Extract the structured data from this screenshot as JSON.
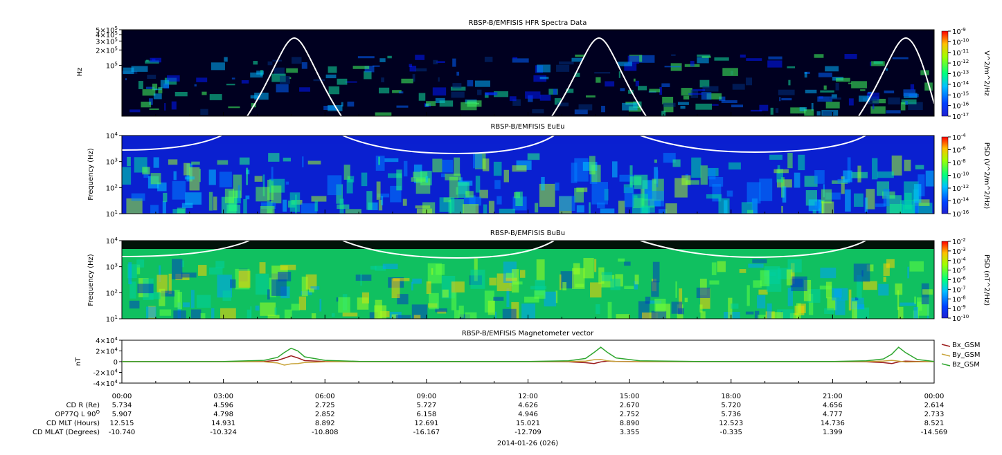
{
  "chart_data": [
    {
      "type": "heatmap",
      "title": "RBSP-B/EMFISIS  HFR Spectra Data",
      "ylabel": "Hz",
      "ylim": [
        10000,
        500000
      ],
      "ylog": true,
      "y_ticks": [
        {
          "label": "5×10",
          "exp": "5",
          "value": 500000
        },
        {
          "label": "4×10",
          "exp": "5",
          "value": 400000
        },
        {
          "label": "3×10",
          "exp": "5",
          "value": 300000
        },
        {
          "label": "2×10",
          "exp": "5",
          "value": 200000
        },
        {
          "label": "10",
          "exp": "5",
          "value": 100000
        }
      ],
      "colorbar": {
        "label": "V^2/m^2/Hz",
        "exponents": [
          "-9",
          "-10",
          "-11",
          "-12",
          "-13",
          "-14",
          "-15",
          "-16",
          "-17"
        ]
      }
    },
    {
      "type": "heatmap",
      "title": "RBSP-B/EMFISIS  EuEu",
      "ylabel": "Frequency (Hz)",
      "ylim": [
        10,
        10000
      ],
      "ylog": true,
      "y_ticks": [
        {
          "label": "10",
          "exp": "4",
          "value": 10000
        },
        {
          "label": "10",
          "exp": "3",
          "value": 1000
        },
        {
          "label": "10",
          "exp": "2",
          "value": 100
        },
        {
          "label": "10",
          "exp": "1",
          "value": 10
        }
      ],
      "colorbar": {
        "label": "PSD (V^2/m^2/Hz)",
        "exponents": [
          "-4",
          "-6",
          "-8",
          "-10",
          "-12",
          "-14",
          "-16"
        ]
      }
    },
    {
      "type": "heatmap",
      "title": "RBSP-B/EMFISIS  BuBu",
      "ylabel": "Frequency (Hz)",
      "ylim": [
        10,
        10000
      ],
      "ylog": true,
      "y_ticks": [
        {
          "label": "10",
          "exp": "4",
          "value": 10000
        },
        {
          "label": "10",
          "exp": "3",
          "value": 1000
        },
        {
          "label": "10",
          "exp": "2",
          "value": 100
        },
        {
          "label": "10",
          "exp": "1",
          "value": 10
        }
      ],
      "colorbar": {
        "label": "PSD (nT^2/Hz)",
        "exponents": [
          "-2",
          "-3",
          "-4",
          "-5",
          "-6",
          "-7",
          "-8",
          "-9",
          "-10"
        ]
      }
    },
    {
      "type": "line",
      "title": "RBSP-B/EMFISIS  Magnetometer vector",
      "ylabel": "nT",
      "ylim": [
        -40000,
        40000
      ],
      "y_ticks": [
        {
          "label": "4×10",
          "exp": "4",
          "value": 40000
        },
        {
          "label": "2×10",
          "exp": "4",
          "value": 20000
        },
        {
          "label": "0",
          "exp": "",
          "value": 0
        },
        {
          "label": "-2×10",
          "exp": "4",
          "value": -20000
        },
        {
          "label": "-4×10",
          "exp": "4",
          "value": -40000
        }
      ],
      "x": [
        0,
        3,
        4.2,
        4.6,
        4.8,
        5.0,
        5.2,
        5.4,
        6.0,
        7.0,
        12,
        13.2,
        13.7,
        13.95,
        14.15,
        14.35,
        14.6,
        15.3,
        17,
        21,
        22.0,
        22.5,
        22.75,
        22.95,
        23.15,
        23.5,
        24
      ],
      "series": [
        {
          "name": "Bx_GSM",
          "color": "#9b1c1c",
          "values": [
            0,
            0,
            400,
            2500,
            6500,
            11000,
            7000,
            2000,
            300,
            50,
            0,
            -300,
            -2000,
            -3500,
            -500,
            1200,
            400,
            50,
            0,
            0,
            -300,
            -1800,
            -3500,
            -500,
            900,
            300,
            0
          ]
        },
        {
          "name": "By_GSM",
          "color": "#c8a43a",
          "values": [
            0,
            0,
            -300,
            -2500,
            -6500,
            -4000,
            -3500,
            -1500,
            -200,
            0,
            0,
            200,
            900,
            3500,
            4000,
            1500,
            300,
            0,
            0,
            0,
            200,
            1200,
            2500,
            1000,
            -600,
            -200,
            0
          ]
        },
        {
          "name": "Bz_GSM",
          "color": "#2ea62e",
          "values": [
            0,
            300,
            2500,
            8000,
            17000,
            25000,
            20000,
            9000,
            2500,
            500,
            300,
            1500,
            6000,
            17000,
            27000,
            17000,
            7000,
            1500,
            300,
            300,
            1500,
            5000,
            14000,
            27000,
            17000,
            4000,
            300
          ]
        }
      ]
    }
  ],
  "x_axis": {
    "tick_labels": [
      "00:00",
      "03:00",
      "06:00",
      "09:00",
      "12:00",
      "15:00",
      "18:00",
      "21:00",
      "00:00"
    ],
    "rows": [
      {
        "label": "CD R (Re)",
        "values": [
          "5.734",
          "4.596",
          "2.725",
          "5.727",
          "4.626",
          "2.670",
          "5.720",
          "4.656",
          "2.614"
        ]
      },
      {
        "label": "OP77Q L 90",
        "sup": "O",
        "values": [
          "5.907",
          "4.798",
          "2.852",
          "6.158",
          "4.946",
          "2.752",
          "5.736",
          "4.777",
          "2.733"
        ]
      },
      {
        "label": "CD MLT (Hours)",
        "values": [
          "12.515",
          "14.931",
          "8.892",
          "12.691",
          "15.021",
          "8.890",
          "12.523",
          "14.736",
          "8.521"
        ]
      },
      {
        "label": "CD MLAT (Degrees)",
        "values": [
          "-10.740",
          "-10.324",
          "-10.808",
          "-16.167",
          "-12.709",
          "3.355",
          "-0.335",
          "1.399",
          "-14.569"
        ]
      }
    ],
    "date_label": "2014-01-26 (026)"
  }
}
